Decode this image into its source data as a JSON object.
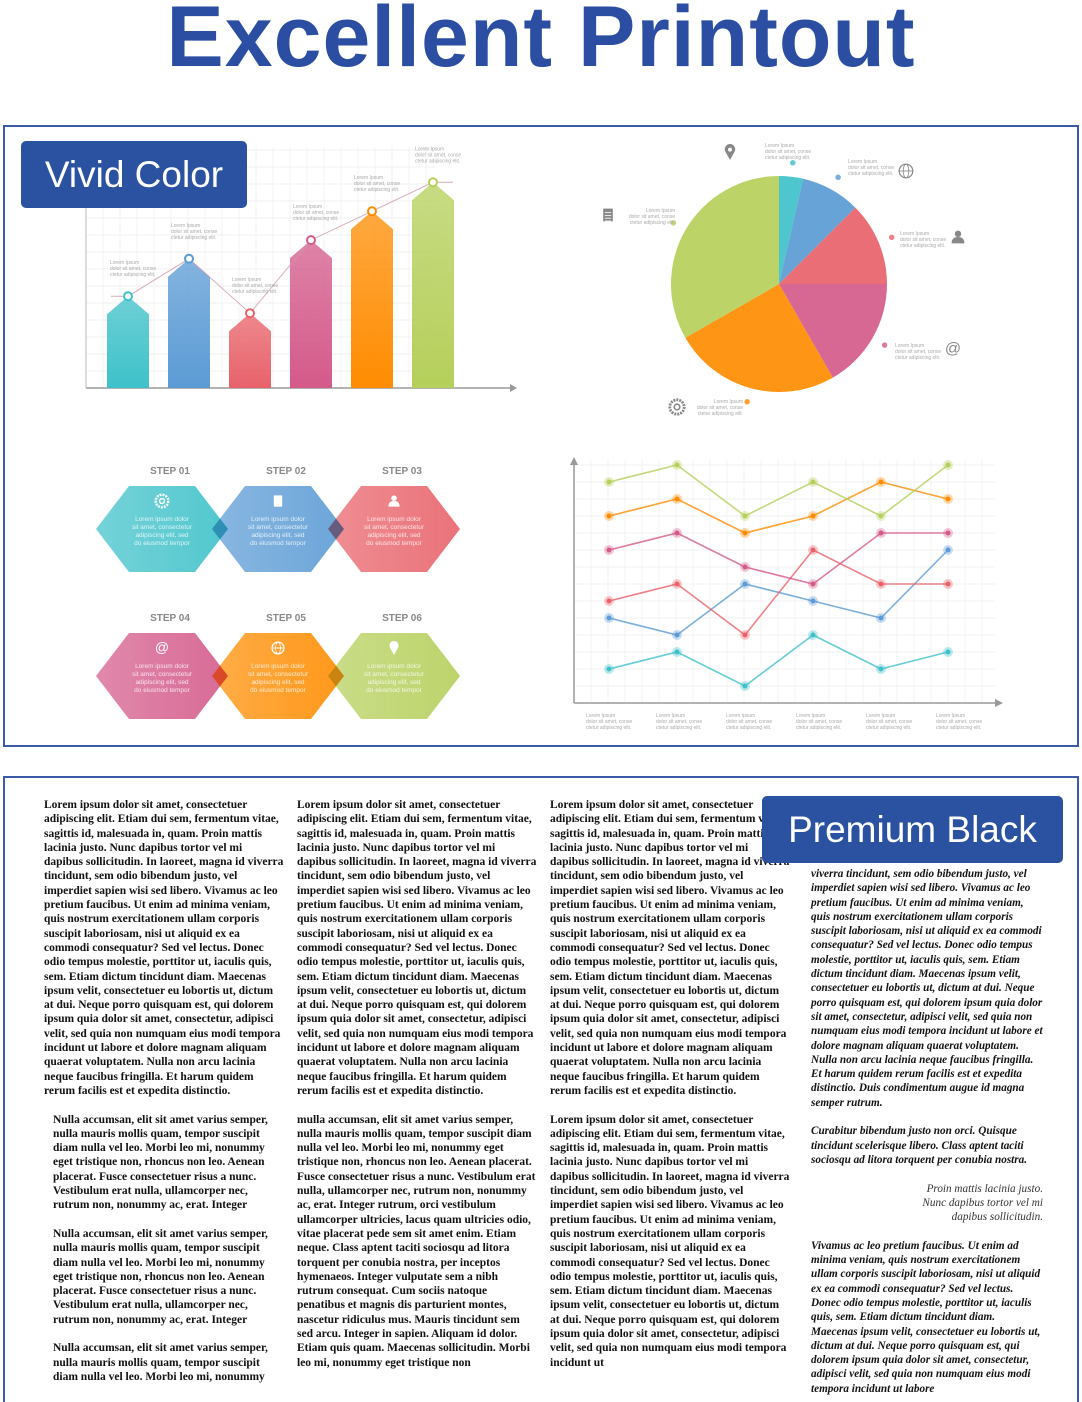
{
  "title": "Excellent Printout",
  "top_badge": "Vivid Color",
  "bottom_badge": "Premium Black",
  "colors": {
    "accent": "#2a52a0",
    "teal": "#3ec1c9",
    "blue": "#5b9bd5",
    "red": "#e8626a",
    "pink": "#d45a8a",
    "orange": "#ff8c00",
    "green": "#b5cf5a"
  },
  "placeholder_label": {
    "head": "Lorem Ipsum",
    "line1": "dolor sit amet, conse",
    "line2": "ctetur adipiscing elit."
  },
  "steps": [
    {
      "label": "STEP 01",
      "icon": "gear-icon",
      "color": "#3ec1c9"
    },
    {
      "label": "STEP 02",
      "icon": "document-icon",
      "color": "#5b9bd5"
    },
    {
      "label": "STEP 03",
      "icon": "user-icon",
      "color": "#e8626a"
    },
    {
      "label": "STEP 04",
      "icon": "at-icon",
      "color": "#d45a8a"
    },
    {
      "label": "STEP 05",
      "icon": "globe-icon",
      "color": "#ff8c00"
    },
    {
      "label": "STEP 06",
      "icon": "location-pin-icon",
      "color": "#b5cf5a"
    }
  ],
  "step_text": [
    "Lorem ipsum dolor",
    "sit amet, consectetur",
    "adipiscing elit, sed",
    "do eiusmod tempor"
  ],
  "chart_data": [
    {
      "type": "bar",
      "values": [
        5.4,
        7.6,
        4.4,
        8.7,
        10.4,
        12.1
      ],
      "colors": [
        "#3ec1c9",
        "#5b9bd5",
        "#e8626a",
        "#d45a8a",
        "#ff8c00",
        "#b5cf5a"
      ],
      "grid": true,
      "trend_line": true
    },
    {
      "type": "pie",
      "values": [
        3.6,
        8.9,
        12.5,
        16.7,
        25,
        33.3
      ],
      "colors": [
        "#3ec1c9",
        "#5b9bd5",
        "#e8626a",
        "#d45a8a",
        "#ff8c00",
        "#b5cf5a"
      ],
      "icons": [
        "location-pin-icon",
        "globe-icon",
        "user-icon",
        "at-icon",
        "gear-icon",
        "document-icon"
      ]
    },
    {
      "type": "line",
      "x": [
        1,
        2,
        3,
        4,
        5,
        6
      ],
      "grid": true,
      "series": [
        {
          "color": "#3ec1c9",
          "values": [
            2,
            3,
            1,
            4,
            2,
            3
          ]
        },
        {
          "color": "#5b9bd5",
          "values": [
            5,
            4,
            7,
            6,
            5,
            9
          ]
        },
        {
          "color": "#e8626a",
          "values": [
            6,
            7,
            4,
            9,
            7,
            7
          ]
        },
        {
          "color": "#d45a8a",
          "values": [
            9,
            10,
            8,
            7,
            10,
            10
          ]
        },
        {
          "color": "#ff8c00",
          "values": [
            11,
            12,
            10,
            11,
            13,
            12
          ]
        },
        {
          "color": "#b5cf5a",
          "values": [
            13,
            14,
            11,
            13,
            11,
            14
          ]
        }
      ]
    }
  ],
  "columns": [
    [
      "Lorem ipsum dolor sit amet, consectetuer adipiscing elit. Etiam dui sem, fermentum vitae, sagittis id, malesuada in, quam. Proin mattis lacinia justo. Nunc dapibus tortor vel mi dapibus sollicitudin. In laoreet, magna id viverra tincidunt, sem odio bibendum justo, vel imperdiet sapien wisi sed libero. Vivamus ac leo pretium faucibus. Ut enim ad minima veniam, quis nostrum exercitationem ullam corporis suscipit laboriosam, nisi ut aliquid ex ea commodi consequatur? Sed vel lectus. Donec odio tempus molestie, porttitor ut, iaculis quis, sem. Etiam dictum tincidunt diam. Maecenas ipsum velit, consectetuer eu lobortis ut, dictum at dui. Neque porro quisquam est, qui dolorem ipsum quia dolor sit amet, consectetur, adipisci velit, sed quia non numquam eius modi tempora incidunt ut labore et dolore magnam aliquam quaerat voluptatem. Nulla non arcu lacinia neque faucibus fringilla. Et harum quidem rerum facilis est et expedita distinctio.",
      "Nulla accumsan, elit sit amet varius semper, nulla mauris mollis quam, tempor suscipit diam nulla vel leo. Morbi leo mi, nonummy eget tristique non, rhoncus non leo. Aenean placerat. Fusce consectetuer risus a nunc. Vestibulum erat nulla, ullamcorper nec, rutrum non, nonummy ac, erat. Integer",
      "Nulla accumsan, elit sit amet varius semper, nulla mauris mollis quam, tempor suscipit diam nulla vel leo. Morbi leo mi, nonummy eget tristique non, rhoncus non leo. Aenean placerat. Fusce consectetuer risus a nunc. Vestibulum erat nulla, ullamcorper nec, rutrum non, nonummy ac, erat. Integer",
      "Nulla accumsan, elit sit amet varius semper, nulla mauris mollis quam, tempor suscipit diam nulla vel leo. Morbi leo mi, nonummy"
    ],
    [
      "Lorem ipsum dolor sit amet, consectetuer adipiscing elit. Etiam dui sem, fermentum vitae, sagittis id, malesuada in, quam. Proin mattis lacinia justo. Nunc dapibus tortor vel mi dapibus sollicitudin. In laoreet, magna id viverra tincidunt, sem odio bibendum justo, vel imperdiet sapien wisi sed libero. Vivamus ac leo pretium faucibus. Ut enim ad minima veniam, quis nostrum exercitationem ullam corporis suscipit laboriosam, nisi ut aliquid ex ea commodi consequatur? Sed vel lectus. Donec odio tempus molestie, porttitor ut, iaculis quis, sem. Etiam dictum tincidunt diam. Maecenas ipsum velit, consectetuer eu lobortis ut, dictum at dui. Neque porro quisquam est, qui dolorem ipsum quia dolor sit amet, consectetur, adipisci velit, sed quia non numquam eius modi tempora incidunt ut labore et dolore magnam aliquam quaerat voluptatem. Nulla non arcu lacinia neque faucibus fringilla. Et harum quidem rerum facilis est et expedita distinctio.",
      "mulla accumsan, elit sit amet varius semper, nulla mauris mollis quam, tempor suscipit diam nulla vel leo. Morbi leo mi, nonummy eget tristique non, rhoncus non leo. Aenean placerat. Fusce consectetuer risus a nunc. Vestibulum erat nulla, ullamcorper nec, rutrum non, nonummy ac, erat. Integer rutrum, orci vestibulum ullamcorper ultricies, lacus quam ultricies odio, vitae placerat pede sem sit amet enim. Etiam neque. Class aptent taciti sociosqu ad litora torquent per conubia nostra, per inceptos hymenaeos. Integer vulputate sem a nibh rutrum consequat. Cum sociis natoque penatibus et magnis dis parturient montes, nascetur ridiculus mus. Mauris tincidunt sem sed arcu. Integer in sapien. Aliquam id dolor. Etiam quis quam. Maecenas sollicitudin. Morbi leo mi, nonummy eget tristique non"
    ],
    [
      "Lorem ipsum dolor sit amet, consectetuer adipiscing elit. Etiam dui sem, fermentum vitae, sagittis id, malesuada in, quam. Proin mattis lacinia justo. Nunc dapibus tortor vel mi dapibus sollicitudin. In laoreet, magna id viverra tincidunt, sem odio bibendum justo, vel imperdiet sapien wisi sed libero. Vivamus ac leo pretium faucibus. Ut enim ad minima veniam, quis nostrum exercitationem ullam corporis suscipit laboriosam, nisi ut aliquid ex ea commodi consequatur? Sed vel lectus. Donec odio tempus molestie, porttitor ut, iaculis quis, sem. Etiam dictum tincidunt diam. Maecenas ipsum velit, consectetuer eu lobortis ut, dictum at dui. Neque porro quisquam est, qui dolorem ipsum quia dolor sit amet, consectetur, adipisci velit, sed quia non numquam eius modi tempora incidunt ut labore et dolore magnam aliquam quaerat voluptatem. Nulla non arcu lacinia neque faucibus fringilla. Et harum quidem rerum facilis est et expedita distinctio.",
      "Lorem ipsum dolor sit amet, consectetuer adipiscing elit. Etiam dui sem, fermentum vitae, sagittis id, malesuada in, quam. Proin mattis lacinia justo. Nunc dapibus tortor vel mi dapibus sollicitudin. In laoreet, magna id viverra tincidunt, sem odio bibendum justo, vel imperdiet sapien wisi sed libero. Vivamus ac leo pretium faucibus. Ut enim ad minima veniam, quis nostrum exercitationem ullam corporis suscipit laboriosam, nisi ut aliquid ex ea commodi consequatur? Sed vel lectus. Donec odio tempus molestie, porttitor ut, iaculis quis, sem. Etiam dictum tincidunt diam. Maecenas ipsum velit, consectetuer eu lobortis ut, dictum at dui. Neque porro quisquam est, qui dolorem ipsum quia dolor sit amet, consectetur, adipisci velit, sed quia non numquam eius modi tempora incidunt ut"
    ]
  ],
  "column4": {
    "p1": "viverra tincidunt, sem odio bibendum justo, vel imperdiet sapien wisi sed libero. Vivamus ac leo pretium faucibus. Ut enim ad minima veniam, quis nostrum exercitationem ullam corporis suscipit laboriosam, nisi ut aliquid ex ea commodi consequatur? Sed vel lectus. Donec odio tempus molestie, porttitor ut, iaculis quis, sem. Etiam dictum tincidunt diam. Maecenas ipsum velit, consectetuer eu lobortis ut, dictum at dui. Neque porro quisquam est, qui dolorem ipsum quia dolor sit amet, consectetur, adipisci velit, sed quia non numquam eius modi tempora incidunt ut labore et dolore magnam aliquam quaerat voluptatem. Nulla non arcu lacinia neque faucibus fringilla. Et harum quidem rerum facilis est et expedita distinctio. Duis condimentum augue id magna semper rutrum.",
    "p2": "Curabitur bibendum justo non orci. Quisque tincidunt scelerisque libero. Class aptent taciti sociosqu ad litora torquent per conubia nostra.",
    "quote": "Proin mattis lacinia justo. Nunc dapibus tortor vel mi dapibus sollicitudin.",
    "p3": "Vivamus ac leo pretium faucibus. Ut enim ad minima veniam, quis nostrum exercitationem ullam corporis suscipit laboriosam, nisi ut aliquid ex ea commodi consequatur? Sed vel lectus. Donec odio tempus molestie, porttitor ut, iaculis quis, sem. Etiam dictum tincidunt diam. Maecenas ipsum velit, consectetuer eu lobortis ut, dictum at dui. Neque porro quisquam est, qui dolorem ipsum quia dolor sit amet, consectetur, adipisci velit, sed quia non numquam eius modi tempora incidunt ut labore"
  }
}
